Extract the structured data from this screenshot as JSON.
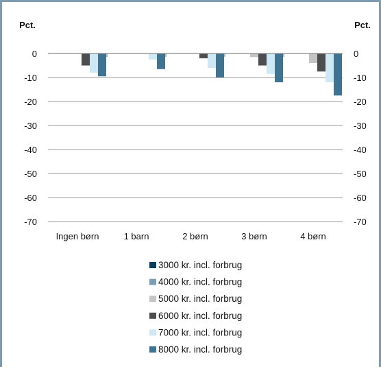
{
  "chart_data": {
    "type": "bar",
    "left_axis_label": "Pct.",
    "right_axis_label": "Pct.",
    "categories": [
      "Ingen børn",
      "1 barn",
      "2 børn",
      "3 børn",
      "4 børn"
    ],
    "ylim": [
      -70,
      0
    ],
    "yticks": [
      "0",
      "-10",
      "-20",
      "-30",
      "-40",
      "-50",
      "-60",
      "-70"
    ],
    "ytick_values": [
      0,
      -10,
      -20,
      -30,
      -40,
      -50,
      -60,
      -70
    ],
    "grid": true,
    "legend_position": "bottom",
    "series": [
      {
        "name": "3000 kr. incl. forbrug",
        "color": "#0b3d5c",
        "values": [
          0,
          0,
          0,
          0,
          0
        ]
      },
      {
        "name": "4000 kr.  incl. forbrug",
        "color": "#7c9db6",
        "values": [
          0,
          0,
          0,
          0,
          0
        ]
      },
      {
        "name": "5000 kr. incl. forbrug",
        "color": "#c4c4c4",
        "values": [
          0,
          0,
          0,
          -1.5,
          -4
        ]
      },
      {
        "name": "6000 kr. incl. forbrug",
        "color": "#4d4d4f",
        "values": [
          -5,
          0,
          -2,
          -5,
          -7.5
        ]
      },
      {
        "name": "7000 kr. incl. forbrug",
        "color": "#cfe8f6",
        "values": [
          -8,
          -2.5,
          -6,
          -8.5,
          -12
        ]
      },
      {
        "name": "8000 kr. incl. forbrug",
        "color": "#3f7392",
        "values": [
          -9.5,
          -6.5,
          -10,
          -12,
          -17.5
        ]
      }
    ]
  }
}
